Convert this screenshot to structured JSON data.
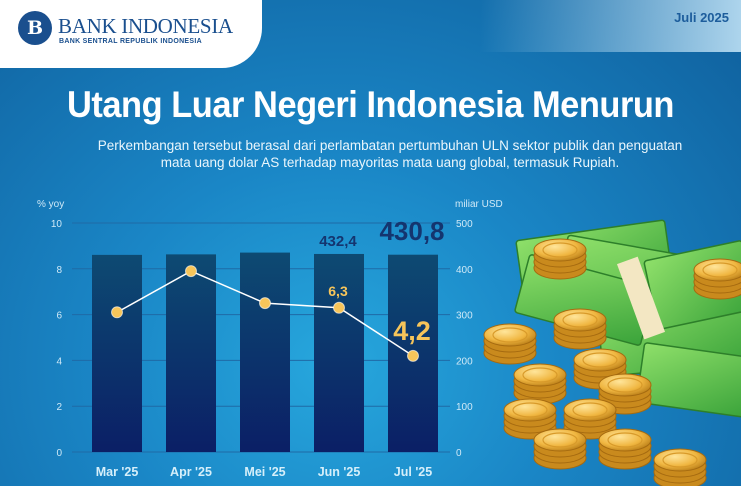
{
  "header": {
    "brand": "BANK INDONESIA",
    "brand_sub": "BANK SENTRAL REPUBLIK INDONESIA",
    "logo_letters": "B",
    "date": "Juli 2025"
  },
  "title": "Utang Luar Negeri Indonesia Menurun",
  "subtitle_line1": "Perkembangan tersebut berasal dari perlambatan pertumbuhan ULN sektor publik dan penguatan",
  "subtitle_line2": "mata uang dolar AS terhadap mayoritas mata uang global, termasuk Rupiah.",
  "colors": {
    "bar": "#0d2f74",
    "line": "#ffffff",
    "marker": "#f7c55a",
    "highlight_label": "#f7c55a",
    "bar_label": "#14356f"
  },
  "chart_data": {
    "type": "bar+line",
    "categories": [
      "Mar '25",
      "Apr '25",
      "Mei '25",
      "Jun '25",
      "Jul '25"
    ],
    "left_axis": {
      "label": "% yoy",
      "ylim": [
        0,
        10
      ],
      "ticks": [
        "0",
        "2",
        "4",
        "6",
        "8",
        "10"
      ]
    },
    "right_axis": {
      "label": "miliar USD",
      "ylim": [
        0,
        500
      ],
      "ticks": [
        "0",
        "100",
        "200",
        "300",
        "400",
        "500"
      ]
    },
    "series": [
      {
        "type": "bar",
        "axis": "right",
        "values": [
          430.4,
          431.5,
          435.4,
          432.4,
          430.8
        ],
        "data_labels": {
          "3": "432,4",
          "4": "430,8"
        }
      },
      {
        "type": "line",
        "axis": "left",
        "values": [
          6.1,
          7.9,
          6.5,
          6.3,
          4.2
        ],
        "data_labels": {
          "3": "6,3",
          "4": "4,2"
        }
      }
    ],
    "grid": true
  },
  "illustration": "money-and-coins"
}
